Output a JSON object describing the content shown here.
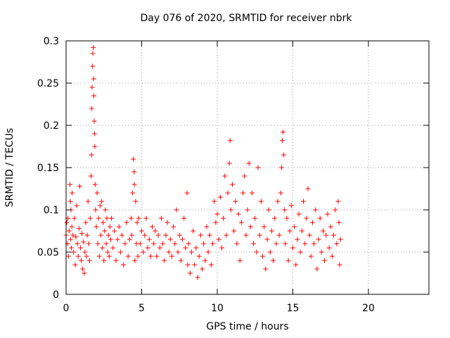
{
  "chart_data": {
    "type": "scatter",
    "title": "Day 076 of 2020, SRMTID for receiver nbrk",
    "xlabel": "GPS time / hours",
    "ylabel": "SRMTID / TECUs",
    "xlim": [
      0,
      24
    ],
    "ylim": [
      0,
      0.3
    ],
    "xticks": [
      0,
      5,
      10,
      15,
      20
    ],
    "xtick_labels": [
      "0",
      "5",
      "10",
      "15",
      "20"
    ],
    "yticks": [
      0,
      0.05,
      0.1,
      0.15,
      0.2,
      0.25,
      0.3
    ],
    "ytick_labels": [
      "0",
      "0.05",
      "0.1",
      "0.15",
      "0.2",
      "0.25",
      "0.3"
    ],
    "grid": true,
    "marker": "+",
    "color": "#ff0000",
    "series": [
      {
        "name": "nbrk",
        "points": [
          [
            0.0,
            0.07
          ],
          [
            0.05,
            0.085
          ],
          [
            0.1,
            0.06
          ],
          [
            0.12,
            0.09
          ],
          [
            0.15,
            0.045
          ],
          [
            0.2,
            0.075
          ],
          [
            0.25,
            0.13
          ],
          [
            0.28,
            0.11
          ],
          [
            0.3,
            0.065
          ],
          [
            0.32,
            0.1
          ],
          [
            0.35,
            0.055
          ],
          [
            0.38,
            0.08
          ],
          [
            0.4,
            0.12
          ],
          [
            0.45,
            0.07
          ],
          [
            0.5,
            0.05
          ],
          [
            0.55,
            0.09
          ],
          [
            0.6,
            0.035
          ],
          [
            0.65,
            0.068
          ],
          [
            0.7,
            0.105
          ],
          [
            0.75,
            0.06
          ],
          [
            0.8,
            0.045
          ],
          [
            0.85,
            0.078
          ],
          [
            0.9,
            0.128
          ],
          [
            0.95,
            0.055
          ],
          [
            1.0,
            0.04
          ],
          [
            1.05,
            0.072
          ],
          [
            1.1,
            0.03
          ],
          [
            1.15,
            0.062
          ],
          [
            1.2,
            0.025
          ],
          [
            1.25,
            0.05
          ],
          [
            1.3,
            0.085
          ],
          [
            1.35,
            0.045
          ],
          [
            1.4,
            0.07
          ],
          [
            1.45,
            0.11
          ],
          [
            1.5,
            0.06
          ],
          [
            1.55,
            0.04
          ],
          [
            1.6,
            0.09
          ],
          [
            1.65,
            0.14
          ],
          [
            1.68,
            0.165
          ],
          [
            1.7,
            0.22
          ],
          [
            1.72,
            0.245
          ],
          [
            1.75,
            0.27
          ],
          [
            1.77,
            0.285
          ],
          [
            1.8,
            0.292
          ],
          [
            1.82,
            0.255
          ],
          [
            1.84,
            0.235
          ],
          [
            1.86,
            0.205
          ],
          [
            1.88,
            0.19
          ],
          [
            1.9,
            0.175
          ],
          [
            1.92,
            0.13
          ],
          [
            1.95,
            0.1
          ],
          [
            2.0,
            0.08
          ],
          [
            2.05,
            0.12
          ],
          [
            2.1,
            0.06
          ],
          [
            2.15,
            0.09
          ],
          [
            2.2,
            0.045
          ],
          [
            2.25,
            0.105
          ],
          [
            2.3,
            0.07
          ],
          [
            2.35,
            0.11
          ],
          [
            2.4,
            0.055
          ],
          [
            2.45,
            0.085
          ],
          [
            2.5,
            0.04
          ],
          [
            2.55,
            0.075
          ],
          [
            2.6,
            0.1
          ],
          [
            2.65,
            0.06
          ],
          [
            2.7,
            0.09
          ],
          [
            2.75,
            0.05
          ],
          [
            2.8,
            0.07
          ],
          [
            2.85,
            0.045
          ],
          [
            2.9,
            0.08
          ],
          [
            2.95,
            0.065
          ],
          [
            3.0,
            0.09
          ],
          [
            3.1,
            0.055
          ],
          [
            3.2,
            0.075
          ],
          [
            3.3,
            0.04
          ],
          [
            3.4,
            0.065
          ],
          [
            3.5,
            0.08
          ],
          [
            3.6,
            0.05
          ],
          [
            3.7,
            0.07
          ],
          [
            3.8,
            0.035
          ],
          [
            3.9,
            0.06
          ],
          [
            4.0,
            0.085
          ],
          [
            4.1,
            0.045
          ],
          [
            4.2,
            0.065
          ],
          [
            4.3,
            0.09
          ],
          [
            4.35,
            0.07
          ],
          [
            4.4,
            0.12
          ],
          [
            4.45,
            0.16
          ],
          [
            4.5,
            0.145
          ],
          [
            4.52,
            0.13
          ],
          [
            4.55,
            0.04
          ],
          [
            4.6,
            0.11
          ],
          [
            4.65,
            0.06
          ],
          [
            4.7,
            0.085
          ],
          [
            4.75,
            0.045
          ],
          [
            4.8,
            0.09
          ],
          [
            4.9,
            0.06
          ],
          [
            5.0,
            0.075
          ],
          [
            5.1,
            0.05
          ],
          [
            5.2,
            0.07
          ],
          [
            5.3,
            0.09
          ],
          [
            5.4,
            0.055
          ],
          [
            5.5,
            0.065
          ],
          [
            5.6,
            0.045
          ],
          [
            5.7,
            0.08
          ],
          [
            5.8,
            0.06
          ],
          [
            5.9,
            0.075
          ],
          [
            6.0,
            0.045
          ],
          [
            6.1,
            0.07
          ],
          [
            6.2,
            0.055
          ],
          [
            6.3,
            0.09
          ],
          [
            6.4,
            0.06
          ],
          [
            6.5,
            0.04
          ],
          [
            6.6,
            0.07
          ],
          [
            6.7,
            0.085
          ],
          [
            6.8,
            0.05
          ],
          [
            6.9,
            0.065
          ],
          [
            7.0,
            0.045
          ],
          [
            7.1,
            0.08
          ],
          [
            7.2,
            0.06
          ],
          [
            7.3,
            0.1
          ],
          [
            7.4,
            0.05
          ],
          [
            7.5,
            0.07
          ],
          [
            7.6,
            0.04
          ],
          [
            7.7,
            0.065
          ],
          [
            7.8,
            0.09
          ],
          [
            7.9,
            0.055
          ],
          [
            8.0,
            0.12
          ],
          [
            8.05,
            0.035
          ],
          [
            8.1,
            0.06
          ],
          [
            8.2,
            0.025
          ],
          [
            8.3,
            0.05
          ],
          [
            8.4,
            0.075
          ],
          [
            8.5,
            0.035
          ],
          [
            8.6,
            0.055
          ],
          [
            8.7,
            0.02
          ],
          [
            8.8,
            0.045
          ],
          [
            8.9,
            0.07
          ],
          [
            9.0,
            0.03
          ],
          [
            9.1,
            0.06
          ],
          [
            9.2,
            0.04
          ],
          [
            9.3,
            0.08
          ],
          [
            9.4,
            0.05
          ],
          [
            9.5,
            0.07
          ],
          [
            9.6,
            0.035
          ],
          [
            9.7,
            0.06
          ],
          [
            9.8,
            0.11
          ],
          [
            9.9,
            0.085
          ],
          [
            10.0,
            0.095
          ],
          [
            10.1,
            0.065
          ],
          [
            10.2,
            0.115
          ],
          [
            10.3,
            0.055
          ],
          [
            10.4,
            0.09
          ],
          [
            10.5,
            0.14
          ],
          [
            10.6,
            0.07
          ],
          [
            10.7,
            0.12
          ],
          [
            10.8,
            0.155
          ],
          [
            10.85,
            0.182
          ],
          [
            10.9,
            0.1
          ],
          [
            11.0,
            0.13
          ],
          [
            11.1,
            0.075
          ],
          [
            11.2,
            0.11
          ],
          [
            11.3,
            0.06
          ],
          [
            11.4,
            0.095
          ],
          [
            11.5,
            0.04
          ],
          [
            11.6,
            0.085
          ],
          [
            11.7,
            0.12
          ],
          [
            11.8,
            0.14
          ],
          [
            11.9,
            0.07
          ],
          [
            12.0,
            0.1
          ],
          [
            12.1,
            0.155
          ],
          [
            12.2,
            0.08
          ],
          [
            12.3,
            0.12
          ],
          [
            12.4,
            0.06
          ],
          [
            12.5,
            0.09
          ],
          [
            12.6,
            0.05
          ],
          [
            12.7,
            0.15
          ],
          [
            12.8,
            0.07
          ],
          [
            12.9,
            0.11
          ],
          [
            13.0,
            0.045
          ],
          [
            13.1,
            0.08
          ],
          [
            13.2,
            0.03
          ],
          [
            13.3,
            0.065
          ],
          [
            13.4,
            0.1
          ],
          [
            13.5,
            0.05
          ],
          [
            13.6,
            0.075
          ],
          [
            13.7,
            0.04
          ],
          [
            13.8,
            0.09
          ],
          [
            13.9,
            0.06
          ],
          [
            14.0,
            0.11
          ],
          [
            14.1,
            0.07
          ],
          [
            14.2,
            0.12
          ],
          [
            14.25,
            0.15
          ],
          [
            14.3,
            0.182
          ],
          [
            14.35,
            0.192
          ],
          [
            14.4,
            0.165
          ],
          [
            14.45,
            0.1
          ],
          [
            14.5,
            0.06
          ],
          [
            14.6,
            0.09
          ],
          [
            14.7,
            0.04
          ],
          [
            14.8,
            0.075
          ],
          [
            14.9,
            0.105
          ],
          [
            15.0,
            0.055
          ],
          [
            15.1,
            0.08
          ],
          [
            15.2,
            0.035
          ],
          [
            15.3,
            0.065
          ],
          [
            15.4,
            0.095
          ],
          [
            15.5,
            0.05
          ],
          [
            15.6,
            0.075
          ],
          [
            15.7,
            0.11
          ],
          [
            15.8,
            0.06
          ],
          [
            15.9,
            0.09
          ],
          [
            16.0,
            0.125
          ],
          [
            16.1,
            0.07
          ],
          [
            16.2,
            0.045
          ],
          [
            16.3,
            0.085
          ],
          [
            16.4,
            0.06
          ],
          [
            16.5,
            0.1
          ],
          [
            16.6,
            0.03
          ],
          [
            16.7,
            0.065
          ],
          [
            16.8,
            0.09
          ],
          [
            16.9,
            0.05
          ],
          [
            17.0,
            0.075
          ],
          [
            17.1,
            0.04
          ],
          [
            17.2,
            0.07
          ],
          [
            17.3,
            0.095
          ],
          [
            17.4,
            0.055
          ],
          [
            17.5,
            0.08
          ],
          [
            17.6,
            0.045
          ],
          [
            17.7,
            0.07
          ],
          [
            17.8,
            0.1
          ],
          [
            17.9,
            0.06
          ],
          [
            18.0,
            0.11
          ],
          [
            18.05,
            0.085
          ],
          [
            18.1,
            0.035
          ],
          [
            18.15,
            0.065
          ]
        ]
      }
    ]
  }
}
